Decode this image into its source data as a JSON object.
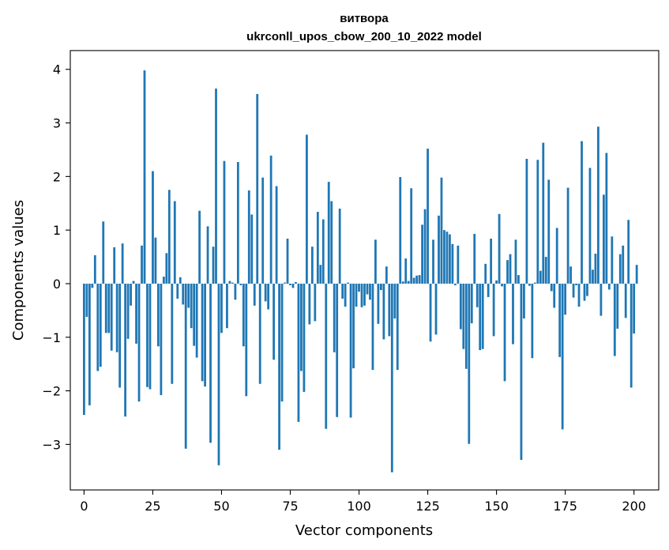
{
  "chart_data": {
    "type": "bar",
    "title_line1": "витвора",
    "title_line2": "ukrconll_upos_cbow_200_10_2022 model",
    "xlabel": "Vector components",
    "ylabel": "Components values",
    "xlim": [
      -5,
      209
    ],
    "ylim": [
      -3.85,
      4.35
    ],
    "xticks": [
      0,
      25,
      50,
      75,
      100,
      125,
      150,
      175,
      200
    ],
    "yticks": [
      -3,
      -2,
      -1,
      0,
      1,
      2,
      3,
      4
    ],
    "bar_color": "#1f77b4",
    "grid": false,
    "legend": "none",
    "values": [
      -2.45,
      -0.62,
      -2.27,
      -0.08,
      0.53,
      -1.63,
      -1.55,
      1.16,
      -0.92,
      -0.92,
      -1.25,
      0.68,
      -1.28,
      -1.94,
      0.75,
      -2.48,
      -1.03,
      -0.41,
      0.05,
      -1.12,
      -2.2,
      0.71,
      3.98,
      -1.93,
      -1.97,
      2.1,
      0.86,
      -1.17,
      -2.08,
      0.13,
      0.57,
      1.75,
      -1.87,
      1.54,
      -0.28,
      0.12,
      -0.39,
      -3.08,
      -0.45,
      -0.83,
      -1.16,
      -1.38,
      1.36,
      -1.82,
      -1.92,
      1.07,
      -2.97,
      0.69,
      3.64,
      -3.39,
      -0.92,
      2.29,
      -0.83,
      0.05,
      0.02,
      -0.3,
      2.27,
      -0.03,
      -1.17,
      -2.1,
      1.74,
      1.29,
      -0.41,
      3.54,
      -1.87,
      1.98,
      -0.33,
      -0.48,
      2.39,
      -1.42,
      1.82,
      -3.1,
      -2.2,
      0.02,
      0.84,
      -0.03,
      -0.08,
      0.03,
      -2.58,
      -1.63,
      -2.02,
      2.78,
      -0.76,
      0.69,
      -0.7,
      1.34,
      0.35,
      1.2,
      -2.71,
      1.9,
      1.54,
      -1.28,
      -2.49,
      1.4,
      -0.28,
      -0.43,
      0.02,
      -2.5,
      -1.58,
      -0.43,
      -0.15,
      -0.44,
      -0.41,
      -0.2,
      -0.3,
      -1.61,
      0.82,
      -0.75,
      -0.12,
      -1.04,
      0.32,
      -0.98,
      -3.52,
      -0.65,
      -1.61,
      1.99,
      0.04,
      0.47,
      0.05,
      1.78,
      0.11,
      0.15,
      0.16,
      1.1,
      1.39,
      2.52,
      -1.08,
      0.82,
      -0.95,
      1.27,
      1.98,
      1.0,
      0.97,
      0.92,
      0.74,
      -0.03,
      0.71,
      -0.85,
      -1.22,
      -1.59,
      -2.99,
      -0.74,
      0.93,
      -0.44,
      -1.24,
      -1.22,
      0.37,
      -0.25,
      0.84,
      -0.98,
      0.06,
      1.3,
      -0.05,
      -1.82,
      0.44,
      0.55,
      -1.13,
      0.82,
      0.16,
      -3.29,
      -0.65,
      2.33,
      -0.04,
      -1.39,
      0.02,
      2.31,
      0.24,
      2.63,
      0.5,
      1.94,
      -0.14,
      -0.45,
      1.04,
      -1.37,
      -2.72,
      -0.58,
      1.79,
      0.32,
      -0.26,
      -0.03,
      -0.43,
      2.66,
      -0.32,
      -0.23,
      2.16,
      0.26,
      0.56,
      2.93,
      -0.6,
      1.66,
      2.44,
      -0.11,
      0.88,
      -1.35,
      -0.84,
      0.55,
      0.71,
      -0.64,
      1.19,
      -1.94,
      -0.93,
      0.35
    ]
  }
}
